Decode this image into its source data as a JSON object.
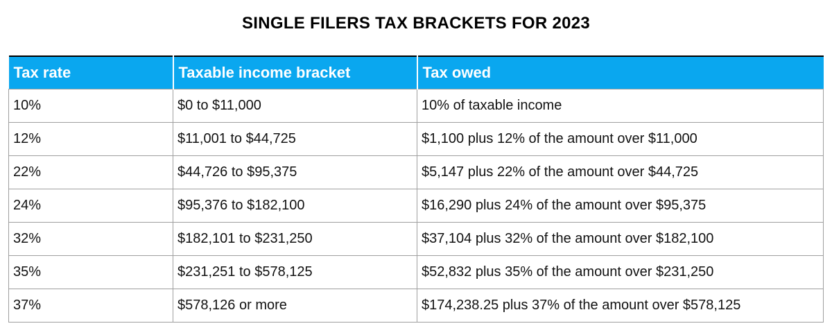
{
  "title": "SINGLE FILERS TAX BRACKETS FOR 2023",
  "chart_data": {
    "type": "table",
    "title": "SINGLE FILERS TAX BRACKETS FOR 2023",
    "columns": [
      "Tax rate",
      "Taxable income bracket",
      "Tax owed"
    ],
    "rows": [
      [
        "10%",
        "$0 to $11,000",
        "10% of taxable income"
      ],
      [
        "12%",
        "$11,001 to $44,725",
        "$1,100 plus 12% of the amount over $11,000"
      ],
      [
        "22%",
        "$44,726 to $95,375",
        "$5,147 plus 22% of the amount over $44,725"
      ],
      [
        "24%",
        "$95,376 to $182,100",
        "$16,290 plus 24% of the amount over $95,375"
      ],
      [
        "32%",
        "$182,101 to $231,250",
        "$37,104 plus 32% of the amount over $182,100"
      ],
      [
        "35%",
        "$231,251 to $578,125",
        "$52,832 plus 35% of the amount over $231,250"
      ],
      [
        "37%",
        "$578,126 or more",
        "$174,238.25 plus 37% of the amount over $578,125"
      ]
    ],
    "legend": "none",
    "grid": "on"
  },
  "colors": {
    "header_bg": "#0aa7ef",
    "header_text": "#ffffff",
    "grid_line": "#9e9e9e",
    "top_border": "#000000",
    "body_text": "#111111",
    "background": "#ffffff"
  }
}
